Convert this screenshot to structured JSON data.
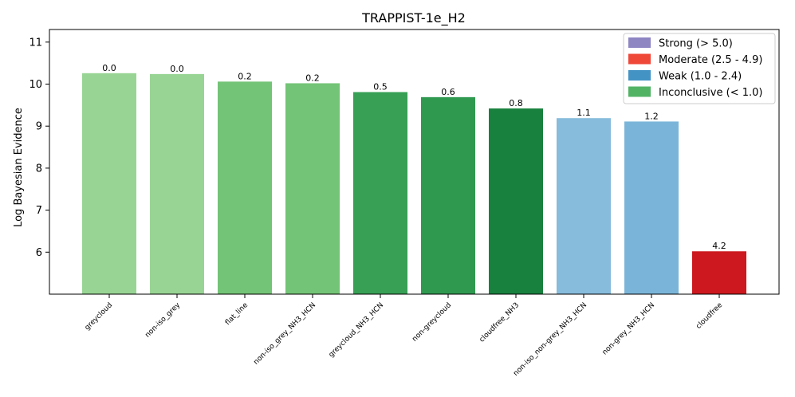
{
  "chart_data": {
    "type": "bar",
    "title": "TRAPPIST-1e_H2",
    "xlabel": "",
    "ylabel": "Log Bayesian Evidence",
    "ylim": [
      5.0,
      11.3
    ],
    "yticks": [
      6,
      7,
      8,
      9,
      10,
      11
    ],
    "categories": [
      "greycloud",
      "non-iso_grey",
      "flat_line",
      "non-iso_grey_NH3_HCN",
      "greycloud_NH3_HCN",
      "non-greycloud",
      "cloudfree_NH3",
      "non-iso_non-grey_NH3_HCN",
      "non-grey_NH3_HCN",
      "cloudfree"
    ],
    "values": [
      10.26,
      10.24,
      10.06,
      10.02,
      9.81,
      9.69,
      9.42,
      9.19,
      9.11,
      6.02
    ],
    "bar_labels": [
      "0.0",
      "0.0",
      "0.2",
      "0.2",
      "0.5",
      "0.6",
      "0.8",
      "1.1",
      "1.2",
      "4.2"
    ],
    "bar_colors": [
      "#98d594",
      "#98d594",
      "#73c476",
      "#73c476",
      "#37a055",
      "#309950",
      "#17813d",
      "#87bcdc",
      "#7ab5d9",
      "#cc181e"
    ],
    "legend": {
      "position": "top-right",
      "entries": [
        {
          "label": "Strong (> 5.0)",
          "color": "#8e86c3"
        },
        {
          "label": "Moderate (2.5 - 4.9)",
          "color": "#ef4738"
        },
        {
          "label": "Weak (1.0 - 2.4)",
          "color": "#4393c5"
        },
        {
          "label": "Inconclusive (< 1.0)",
          "color": "#53b365"
        }
      ]
    },
    "grid": false
  }
}
